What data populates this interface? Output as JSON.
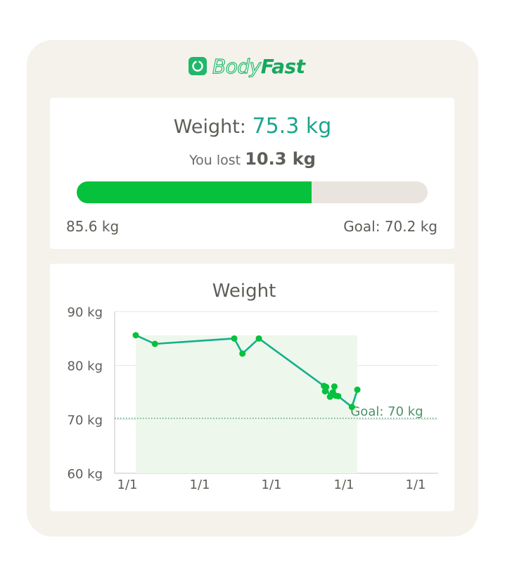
{
  "brand": {
    "name_part1": "Body",
    "name_part2": "Fast"
  },
  "summary": {
    "weight_label": "Weight:",
    "weight_value": "75.3",
    "weight_unit": "kg",
    "lost_label": "You lost",
    "lost_value": "10.3",
    "lost_unit": "kg",
    "progress_fraction": 0.67,
    "start_weight": "85.6 kg",
    "goal_text": "Goal: 70.2 kg"
  },
  "colors": {
    "accent": "#1aa68c",
    "progress": "#05c13b",
    "line": "#12b08c",
    "point": "#05c13b",
    "area": "#eef7ec",
    "goal_line": "#5aa67a"
  },
  "chart_data": {
    "type": "line",
    "title": "Weight",
    "ylabel": "",
    "xlabel": "",
    "ylim": [
      60,
      90
    ],
    "y_ticks": [
      "60 kg",
      "70 kg",
      "80 kg",
      "90 kg"
    ],
    "x_tick_labels": [
      "1/1",
      "1/1",
      "1/1",
      "1/1",
      "1/1"
    ],
    "goal": {
      "value": 70.2,
      "label": "Goal: 70 kg"
    },
    "series": [
      {
        "values": [
          {
            "x": 0.0,
            "y": 85.6
          },
          {
            "x": 0.07,
            "y": 84.0
          },
          {
            "x": 0.36,
            "y": 85.0
          },
          {
            "x": 0.39,
            "y": 82.2
          },
          {
            "x": 0.45,
            "y": 85.0
          },
          {
            "x": 0.688,
            "y": 76.2
          },
          {
            "x": 0.692,
            "y": 75.2
          },
          {
            "x": 0.696,
            "y": 76.0
          },
          {
            "x": 0.71,
            "y": 74.2
          },
          {
            "x": 0.72,
            "y": 75.0
          },
          {
            "x": 0.726,
            "y": 76.1
          },
          {
            "x": 0.73,
            "y": 74.4
          },
          {
            "x": 0.74,
            "y": 74.3
          },
          {
            "x": 0.79,
            "y": 72.3
          },
          {
            "x": 0.81,
            "y": 75.5
          }
        ]
      }
    ]
  }
}
